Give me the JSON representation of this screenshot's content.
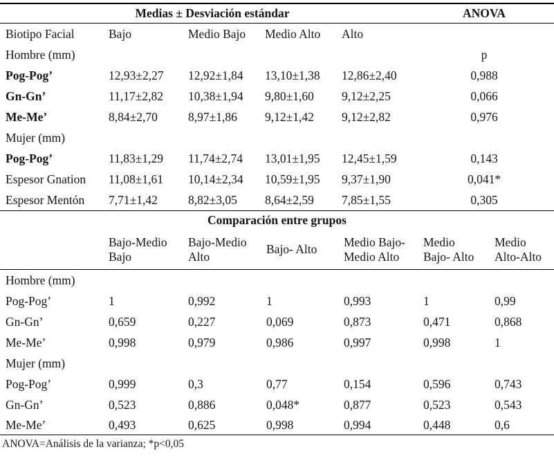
{
  "colors": {
    "text": "#161616",
    "rule": "#000000",
    "background": "#ffffff"
  },
  "section1": {
    "title": "Medias ± Desviación estándar",
    "anova_label": "ANOVA",
    "header": {
      "c0": "Biotipo Facial",
      "c1": "Bajo",
      "c2": "Medio Bajo",
      "c3": "Medio Alto",
      "c4": "Alto"
    },
    "hombre_label": "Hombre (mm)",
    "p_label": "p",
    "mujer_label": "Mujer (mm)",
    "rows": [
      {
        "label": "Pog-Pog’",
        "v1": "12,93±2,27",
        "v2": "12,92±1,84",
        "v3": "13,10±1,38",
        "v4": "12,86±2,40",
        "p": "0,988"
      },
      {
        "label": "Gn-Gn’",
        "v1": "11,17±2,82",
        "v2": "10,38±1,94",
        "v3": "9,80±1,60",
        "v4": "9,12±2,25",
        "p": "0,066"
      },
      {
        "label": "Me-Me’",
        "v1": "8,84±2,70",
        "v2": "8,97±1,86",
        "v3": "9,12±1,42",
        "v4": "9,12±2,82",
        "p": "0,976"
      },
      {
        "label": "Pog-Pog’",
        "v1": "11,83±1,29",
        "v2": "11,74±2,74",
        "v3": "13,01±1,95",
        "v4": "12,45±1,59",
        "p": "0,143"
      },
      {
        "label": "Espesor Gnation",
        "v1": "11,08±1,61",
        "v2": "10,14±2,34",
        "v3": "10,59±1,95",
        "v4": "9,37±1,90",
        "p": "0,041*"
      },
      {
        "label": "Espesor Mentón",
        "v1": "7,71±1,42",
        "v2": "8,82±3,05",
        "v3": "8,64±2,59",
        "v4": "7,85±1,55",
        "p": "0,305"
      }
    ]
  },
  "section2": {
    "title": "Comparación entre grupos",
    "header": [
      "Bajo-Medio\nBajo",
      "Bajo-Medio\nAlto",
      "Bajo- Alto",
      "Medio Bajo-\nMedio Alto",
      "Medio\nBajo- Alto",
      "Medio\nAlto-Alto"
    ],
    "hombre_label": "Hombre (mm)",
    "mujer_label": "Mujer (mm)",
    "rows": [
      {
        "label": "Pog-Pog’",
        "v1": "1",
        "v2": "0,992",
        "v3": "1",
        "v4": "0,993",
        "v5": "1",
        "v6": "0,99"
      },
      {
        "label": "Gn-Gn’",
        "v1": "0,659",
        "v2": "0,227",
        "v3": "0,069",
        "v4": "0,873",
        "v5": "0,471",
        "v6": "0,868"
      },
      {
        "label": "Me-Me’",
        "v1": "0,998",
        "v2": "0,979",
        "v3": "0,986",
        "v4": "0,997",
        "v5": "0,998",
        "v6": "1"
      },
      {
        "label": "Pog-Pog’",
        "v1": "0,999",
        "v2": "0,3",
        "v3": "0,77",
        "v4": "0,154",
        "v5": "0,596",
        "v6": "0,743"
      },
      {
        "label": "Gn-Gn’",
        "v1": "0,523",
        "v2": "0,886",
        "v3": "0,048*",
        "v4": "0,877",
        "v5": "0,523",
        "v6": "0,543"
      },
      {
        "label": "Me-Me’",
        "v1": "0,493",
        "v2": "0,625",
        "v3": "0,998",
        "v4": "0,994",
        "v5": "0,448",
        "v6": "0,6"
      }
    ]
  },
  "footer": {
    "note": "ANOVA=Análisis de la varianza; *p<0,05"
  }
}
